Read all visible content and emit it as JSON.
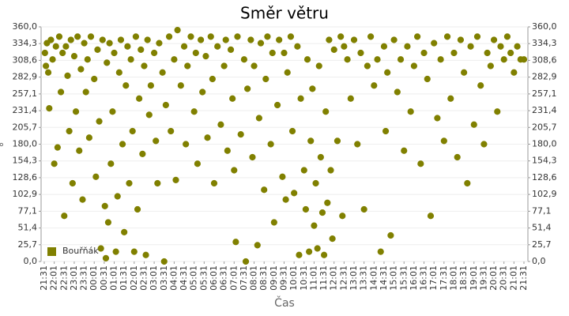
{
  "chart_data": {
    "type": "scatter",
    "title": "Směr větru",
    "xlabel": "Čas",
    "ylabel": "°",
    "x": [
      2,
      5,
      8,
      12,
      15,
      20,
      25,
      30,
      35,
      40,
      45,
      50,
      55,
      60,
      65,
      70,
      75,
      80,
      85,
      90,
      95,
      100,
      105,
      110,
      115,
      120,
      125,
      130,
      135,
      140,
      150,
      155,
      160,
      165,
      170,
      175,
      182,
      185,
      188,
      192,
      196,
      200,
      205,
      210,
      215,
      220,
      225,
      230,
      235,
      240,
      245,
      250,
      255,
      260,
      265,
      270,
      275,
      280,
      285,
      290,
      295,
      300,
      305,
      310,
      315,
      320,
      330,
      335,
      340,
      345,
      355,
      360,
      365,
      375,
      380,
      390,
      395,
      400,
      410,
      420,
      425,
      430,
      440,
      450,
      455,
      460,
      470,
      475,
      485,
      490,
      500,
      505,
      510,
      520,
      530,
      540,
      545,
      550,
      560,
      565,
      570,
      575,
      580,
      590,
      600,
      605,
      610,
      620,
      625,
      630,
      640,
      645,
      650,
      660,
      665,
      670,
      680,
      685,
      690,
      700,
      705,
      715,
      720,
      725,
      730,
      740,
      745,
      750,
      760,
      765,
      770,
      780,
      785,
      790,
      795,
      800,
      805,
      810,
      815,
      820,
      825,
      830,
      835,
      840,
      845,
      850,
      855,
      860,
      865,
      870,
      880,
      890,
      895,
      900,
      910,
      920,
      930,
      940,
      950,
      960,
      970,
      980,
      990,
      1000,
      1010,
      1020,
      1025,
      1030,
      1040,
      1050,
      1060,
      1070,
      1080,
      1090,
      1100,
      1110,
      1120,
      1130,
      1140,
      1150,
      1160,
      1170,
      1180,
      1190,
      1200,
      1210,
      1220,
      1230,
      1240,
      1250,
      1260,
      1270,
      1280,
      1290,
      1300,
      1310,
      1320,
      1330,
      1340,
      1350,
      1360,
      1370,
      1380,
      1390,
      1400,
      1410,
      1420,
      1430,
      1440
    ],
    "series": [
      {
        "name": "Bouřňák",
        "color": "#808000",
        "values": [
          320,
          300,
          335,
          290,
          235,
          340,
          310,
          150,
          330,
          175,
          345,
          260,
          320,
          70,
          330,
          285,
          200,
          340,
          120,
          315,
          230,
          345,
          170,
          295,
          95,
          335,
          260,
          310,
          190,
          345,
          280,
          130,
          325,
          215,
          20,
          340,
          85,
          5,
          305,
          60,
          335,
          150,
          230,
          320,
          15,
          100,
          290,
          340,
          180,
          45,
          270,
          330,
          120,
          310,
          200,
          15,
          345,
          80,
          250,
          325,
          165,
          300,
          10,
          340,
          225,
          270,
          320,
          185,
          120,
          335,
          290,
          0,
          240,
          345,
          200,
          310,
          125,
          355,
          270,
          330,
          180,
          300,
          345,
          230,
          320,
          150,
          340,
          260,
          315,
          190,
          345,
          280,
          120,
          330,
          210,
          300,
          340,
          170,
          325,
          250,
          140,
          30,
          345,
          195,
          310,
          0,
          265,
          340,
          160,
          300,
          25,
          220,
          335,
          110,
          280,
          345,
          180,
          320,
          60,
          240,
          340,
          130,
          320,
          95,
          290,
          345,
          200,
          105,
          330,
          10,
          250,
          140,
          80,
          310,
          15,
          185,
          265,
          55,
          120,
          20,
          300,
          160,
          75,
          10,
          230,
          90,
          340,
          140,
          35,
          325,
          185,
          345,
          70,
          330,
          310,
          250,
          340,
          180,
          320,
          80,
          300,
          345,
          270,
          310,
          15,
          330,
          200,
          290,
          40,
          340,
          260,
          310,
          170,
          330,
          230,
          300,
          345,
          150,
          320,
          280,
          70,
          335,
          220,
          310,
          185,
          345,
          250,
          320,
          160,
          340,
          290,
          120,
          330,
          210,
          345,
          270,
          180,
          320,
          300,
          340,
          230,
          330,
          310,
          345,
          320,
          290,
          330,
          310,
          310
        ]
      }
    ],
    "xlim": [
      0,
      1440
    ],
    "xticks": [
      {
        "value": 0,
        "label": "21:31"
      },
      {
        "value": 30,
        "label": "22:01"
      },
      {
        "value": 60,
        "label": "22:31"
      },
      {
        "value": 90,
        "label": "23:01"
      },
      {
        "value": 120,
        "label": "23:31"
      },
      {
        "value": 150,
        "label": "00:01"
      },
      {
        "value": 180,
        "label": "00:31"
      },
      {
        "value": 210,
        "label": "01:01"
      },
      {
        "value": 240,
        "label": "01:31"
      },
      {
        "value": 270,
        "label": "02:01"
      },
      {
        "value": 300,
        "label": "02:31"
      },
      {
        "value": 330,
        "label": "03:01"
      },
      {
        "value": 360,
        "label": "03:31"
      },
      {
        "value": 390,
        "label": "04:01"
      },
      {
        "value": 420,
        "label": "04:31"
      },
      {
        "value": 450,
        "label": "05:01"
      },
      {
        "value": 480,
        "label": "05:31"
      },
      {
        "value": 510,
        "label": "06:01"
      },
      {
        "value": 540,
        "label": "06:31"
      },
      {
        "value": 570,
        "label": "07:01"
      },
      {
        "value": 600,
        "label": "07:31"
      },
      {
        "value": 630,
        "label": "08:01"
      },
      {
        "value": 660,
        "label": "08:31"
      },
      {
        "value": 690,
        "label": "09:01"
      },
      {
        "value": 720,
        "label": "09:31"
      },
      {
        "value": 750,
        "label": "10:01"
      },
      {
        "value": 780,
        "label": "10:31"
      },
      {
        "value": 810,
        "label": "11:01"
      },
      {
        "value": 840,
        "label": "11:31"
      },
      {
        "value": 870,
        "label": "12:01"
      },
      {
        "value": 900,
        "label": "12:31"
      },
      {
        "value": 930,
        "label": "13:01"
      },
      {
        "value": 960,
        "label": "13:31"
      },
      {
        "value": 990,
        "label": "14:01"
      },
      {
        "value": 1020,
        "label": "14:31"
      },
      {
        "value": 1050,
        "label": "15:01"
      },
      {
        "value": 1080,
        "label": "15:31"
      },
      {
        "value": 1110,
        "label": "16:01"
      },
      {
        "value": 1140,
        "label": "16:31"
      },
      {
        "value": 1170,
        "label": "17:01"
      },
      {
        "value": 1200,
        "label": "17:31"
      },
      {
        "value": 1230,
        "label": "18:01"
      },
      {
        "value": 1260,
        "label": "18:31"
      },
      {
        "value": 1290,
        "label": "19:01"
      },
      {
        "value": 1320,
        "label": "19:31"
      },
      {
        "value": 1350,
        "label": "20:01"
      },
      {
        "value": 1380,
        "label": "20:31"
      },
      {
        "value": 1410,
        "label": "21:01"
      },
      {
        "value": 1440,
        "label": "21:31"
      }
    ],
    "ylim": [
      0,
      360
    ],
    "yticks": [
      {
        "value": 0,
        "label": "0,0"
      },
      {
        "value": 25.7,
        "label": "25,7"
      },
      {
        "value": 51.4,
        "label": "51,4"
      },
      {
        "value": 77.1,
        "label": "77,1"
      },
      {
        "value": 102.9,
        "label": "102,9"
      },
      {
        "value": 128.6,
        "label": "128,6"
      },
      {
        "value": 154.3,
        "label": "154,3"
      },
      {
        "value": 180,
        "label": "180,0"
      },
      {
        "value": 205.7,
        "label": "205,7"
      },
      {
        "value": 231.4,
        "label": "231,4"
      },
      {
        "value": 257.1,
        "label": "257,1"
      },
      {
        "value": 282.9,
        "label": "282,9"
      },
      {
        "value": 308.6,
        "label": "308,6"
      },
      {
        "value": 334.3,
        "label": "334,3"
      },
      {
        "value": 360,
        "label": "360,0"
      }
    ],
    "y2lim": [
      0,
      360
    ],
    "y2ticks": [
      {
        "value": 0,
        "label": "0,0"
      },
      {
        "value": 25.7,
        "label": "25,7"
      },
      {
        "value": 51.4,
        "label": "51,4"
      },
      {
        "value": 77.1,
        "label": "77,1"
      },
      {
        "value": 102.9,
        "label": "102,9"
      },
      {
        "value": 128.6,
        "label": "128,6"
      },
      {
        "value": 154.3,
        "label": "154,3"
      },
      {
        "value": 180,
        "label": "180,0"
      },
      {
        "value": 205.7,
        "label": "205,7"
      },
      {
        "value": 231.4,
        "label": "231,4"
      },
      {
        "value": 257.1,
        "label": "257,1"
      },
      {
        "value": 282.9,
        "label": "282,9"
      },
      {
        "value": 308.6,
        "label": "308,6"
      },
      {
        "value": 334.3,
        "label": "334,3"
      },
      {
        "value": 360,
        "label": "360,0"
      }
    ],
    "grid": true,
    "legend": "lower-left"
  }
}
